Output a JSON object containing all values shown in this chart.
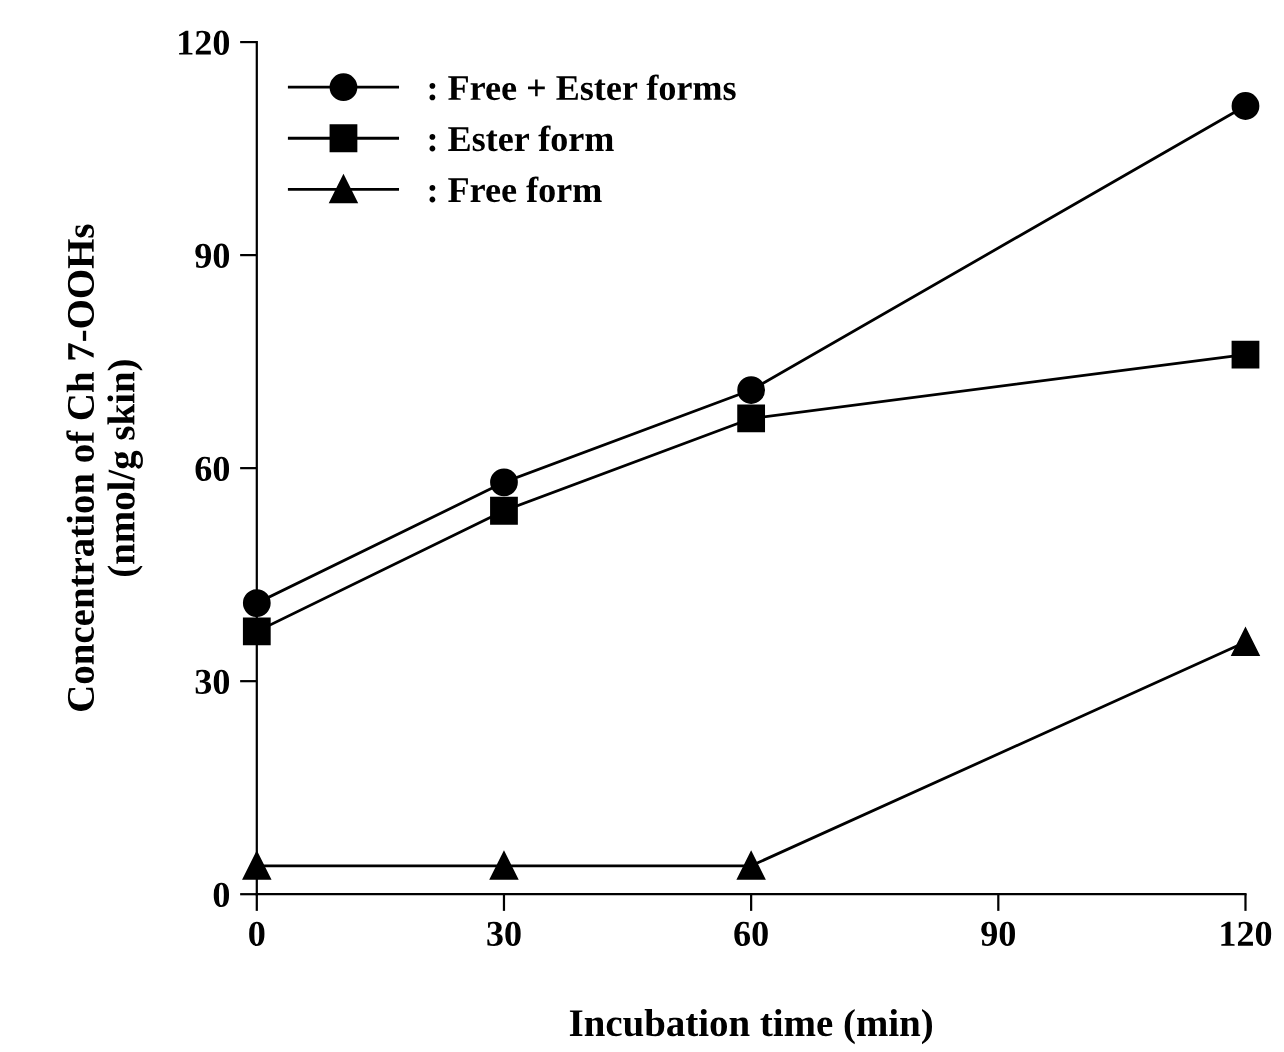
{
  "chart_data": {
    "type": "line",
    "xlabel": "Incubation time (min)",
    "ylabel": "Concentration of Ch 7-OOHs\n(nmol/g skin)",
    "x": [
      0,
      30,
      60,
      120
    ],
    "xlim": [
      0,
      120
    ],
    "xticks": [
      0,
      30,
      60,
      90,
      120
    ],
    "ylim": [
      0,
      120
    ],
    "yticks": [
      0,
      30,
      60,
      90,
      120
    ],
    "grid": false,
    "legend": "top left",
    "line_style": "solid",
    "series": [
      {
        "name": ": Free + Ester forms",
        "color": "#000000",
        "marker": "circle",
        "values": [
          41,
          58,
          71,
          111
        ]
      },
      {
        "name": ": Ester form",
        "color": "#000000",
        "marker": "square",
        "values": [
          37,
          54,
          67,
          76
        ]
      },
      {
        "name": ": Free form",
        "color": "#000000",
        "marker": "triangle",
        "values": [
          4,
          4,
          4,
          35.5
        ]
      }
    ]
  }
}
